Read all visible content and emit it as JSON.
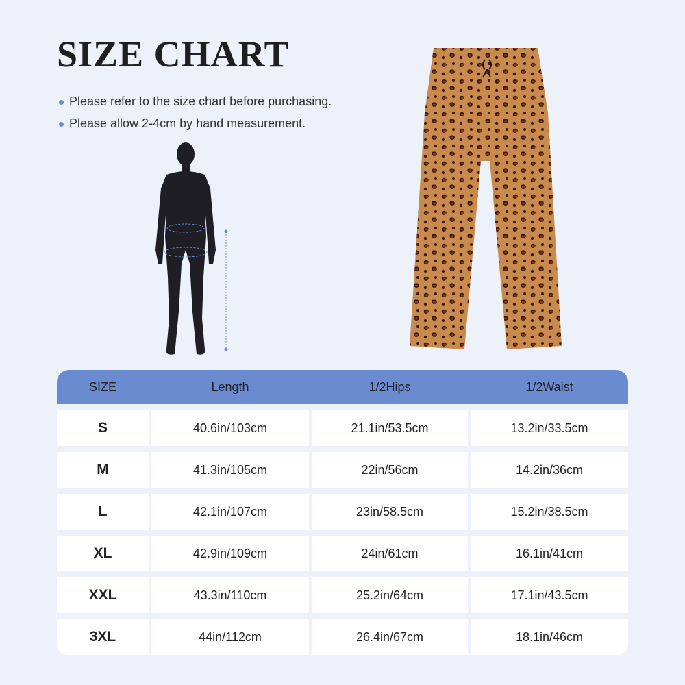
{
  "title": "SIZE CHART",
  "notes": [
    "Please refer to the size chart before purchasing.",
    "Please allow 2-4cm by hand measurement."
  ],
  "colors": {
    "accent": "#6b8bd0",
    "background": "#edf1fa"
  },
  "table": {
    "headers": [
      "SIZE",
      "Length",
      "1/2Hips",
      "1/2Waist"
    ],
    "rows": [
      [
        "S",
        "40.6in/103cm",
        "21.1in/53.5cm",
        "13.2in/33.5cm"
      ],
      [
        "M",
        "41.3in/105cm",
        "22in/56cm",
        "14.2in/36cm"
      ],
      [
        "L",
        "42.1in/107cm",
        "23in/58.5cm",
        "15.2in/38.5cm"
      ],
      [
        "XL",
        "42.9in/109cm",
        "24in/61cm",
        "16.1in/41cm"
      ],
      [
        "XXL",
        "43.3in/110cm",
        "25.2in/64cm",
        "17.1in/43.5cm"
      ],
      [
        "3XL",
        "44in/112cm",
        "26.4in/67cm",
        "18.1in/46cm"
      ]
    ]
  }
}
